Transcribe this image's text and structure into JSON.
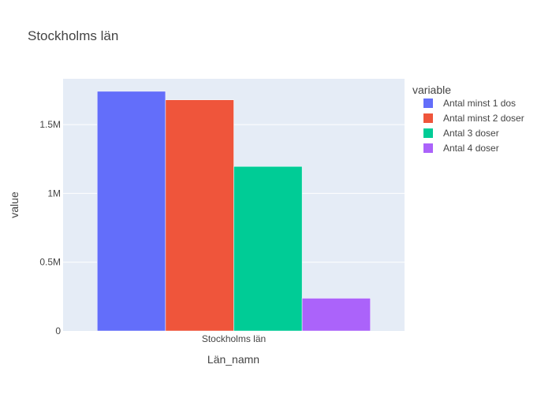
{
  "chart_data": {
    "type": "bar",
    "title": "Stockholms län",
    "xlabel": "Län_namn",
    "ylabel": "value",
    "categories": [
      "Stockholms län"
    ],
    "series": [
      {
        "name": "Antal minst 1 dos",
        "values": [
          1742000
        ],
        "color": "#636efa"
      },
      {
        "name": "Antal minst 2 doser",
        "values": [
          1680000
        ],
        "color": "#ef553b"
      },
      {
        "name": "Antal 3 doser",
        "values": [
          1196000
        ],
        "color": "#00cc96"
      },
      {
        "name": "Antal 4 doser",
        "values": [
          238000
        ],
        "color": "#ab63fa"
      }
    ],
    "ylim": [
      0,
      1833000
    ],
    "yticks": [
      {
        "value": 0,
        "label": "0"
      },
      {
        "value": 500000,
        "label": "0.5M"
      },
      {
        "value": 1000000,
        "label": "1M"
      },
      {
        "value": 1500000,
        "label": "1.5M"
      }
    ],
    "legend": {
      "title": "variable",
      "position": "right"
    },
    "grid": true,
    "colors": {
      "plot_background": "#e5ecf6",
      "gridline": "#ffffff",
      "text": "#444444"
    }
  }
}
